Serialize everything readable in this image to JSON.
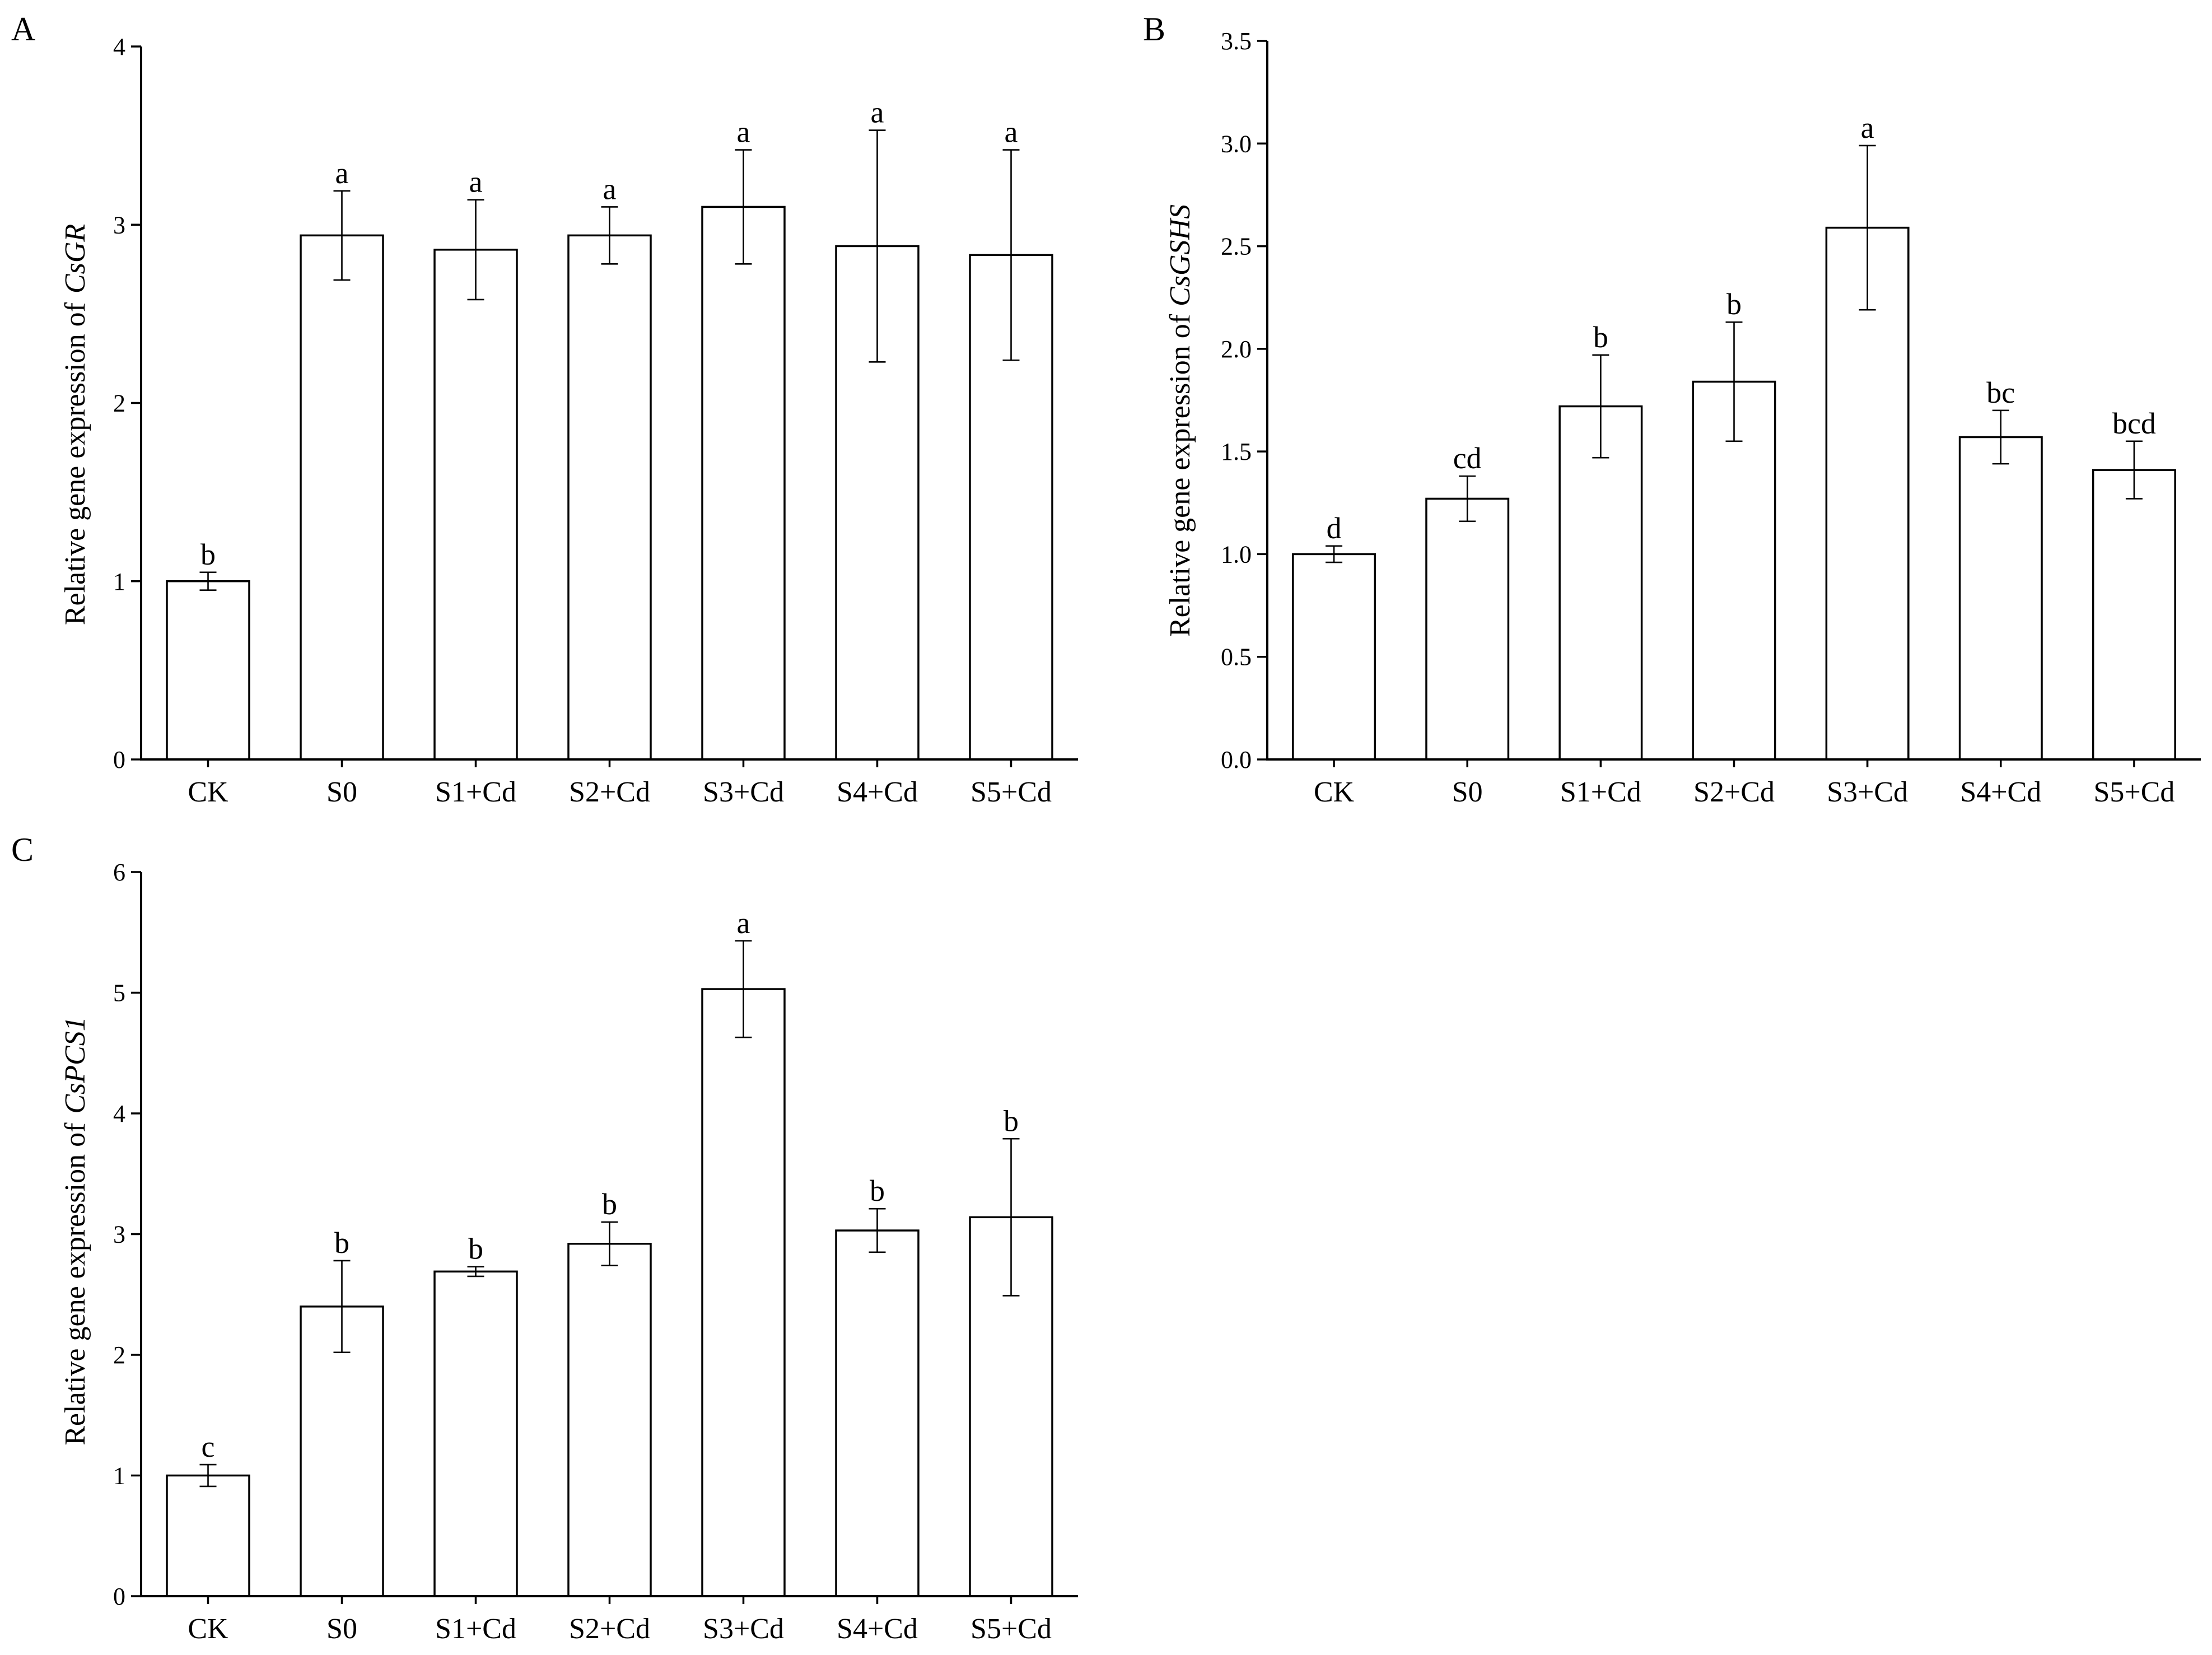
{
  "colors": {
    "bar_fill": "#ffffff",
    "bar_stroke": "#000000"
  },
  "chart_data": [
    {
      "panel": "A",
      "type": "bar",
      "categories": [
        "CK",
        "S0",
        "S1+Cd",
        "S2+Cd",
        "S3+Cd",
        "S4+Cd",
        "S5+Cd"
      ],
      "values": [
        1.0,
        2.94,
        2.86,
        2.94,
        3.1,
        2.88,
        2.83
      ],
      "errors": [
        0.05,
        0.25,
        0.28,
        0.16,
        0.32,
        0.65,
        0.59
      ],
      "letters": [
        "b",
        "a",
        "a",
        "a",
        "a",
        "a",
        "a"
      ],
      "xlabel": "",
      "ylabel": {
        "prefix": "Relative gene expression of",
        "gene": "CsGR"
      },
      "ylim": [
        0,
        4
      ],
      "ytick_labels": [
        "0",
        "1",
        "2",
        "3",
        "4"
      ]
    },
    {
      "panel": "B",
      "type": "bar",
      "categories": [
        "CK",
        "S0",
        "S1+Cd",
        "S2+Cd",
        "S3+Cd",
        "S4+Cd",
        "S5+Cd"
      ],
      "values": [
        1.0,
        1.27,
        1.72,
        1.84,
        2.59,
        1.57,
        1.41
      ],
      "errors": [
        0.04,
        0.11,
        0.25,
        0.29,
        0.4,
        0.13,
        0.14
      ],
      "letters": [
        "d",
        "cd",
        "b",
        "b",
        "a",
        "bc",
        "bcd"
      ],
      "xlabel": "",
      "ylabel": {
        "prefix": "Relative gene expression of",
        "gene": "CsGSHS"
      },
      "ylim": [
        0,
        3.5
      ],
      "ytick_labels": [
        "0.0",
        "0.5",
        "1.0",
        "1.5",
        "2.0",
        "2.5",
        "3.0",
        "3.5"
      ]
    },
    {
      "panel": "C",
      "type": "bar",
      "categories": [
        "CK",
        "S0",
        "S1+Cd",
        "S2+Cd",
        "S3+Cd",
        "S4+Cd",
        "S5+Cd"
      ],
      "values": [
        1.0,
        2.4,
        2.69,
        2.92,
        5.03,
        3.03,
        3.14
      ],
      "errors": [
        0.09,
        0.38,
        0.04,
        0.18,
        0.4,
        0.18,
        0.65
      ],
      "letters": [
        "c",
        "b",
        "b",
        "b",
        "a",
        "b",
        "b"
      ],
      "xlabel": "",
      "ylabel": {
        "prefix": "Relative gene expression of",
        "gene": "CsPCS1"
      },
      "ylim": [
        0,
        6
      ],
      "ytick_labels": [
        "0",
        "1",
        "2",
        "3",
        "4",
        "5",
        "6"
      ]
    }
  ]
}
